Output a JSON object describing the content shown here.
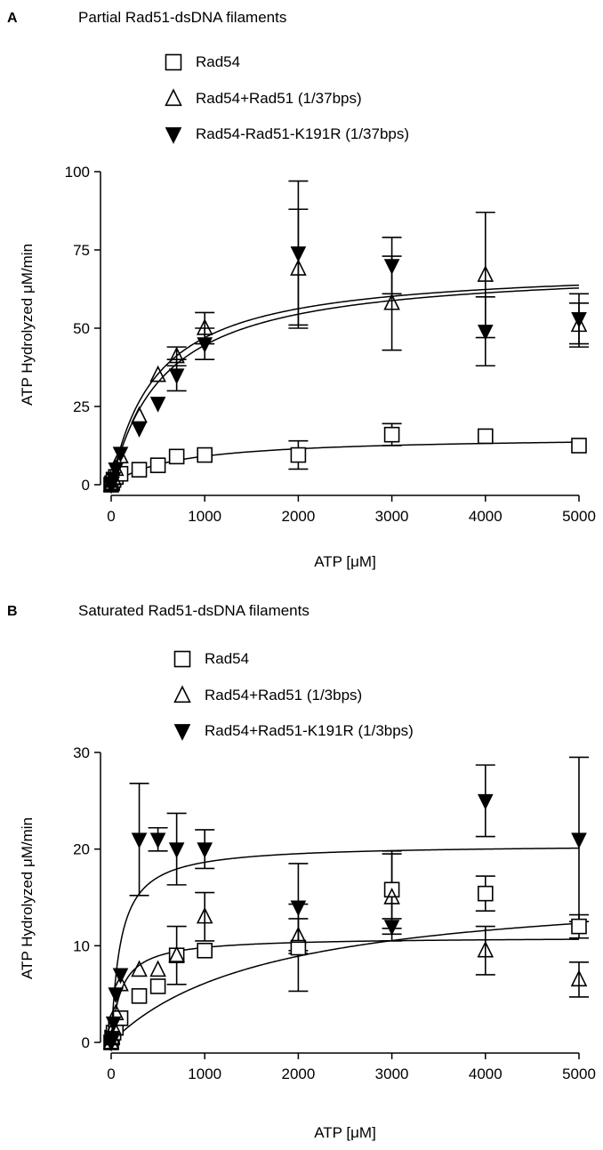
{
  "panels": [
    {
      "letter": "A",
      "title": "Partial Rad51-dsDNA filaments",
      "legend": [
        "Rad54",
        "Rad54+Rad51 (1/37bps)",
        "Rad54-Rad51-K191R (1/37bps)"
      ]
    },
    {
      "letter": "B",
      "title": "Saturated Rad51-dsDNA filaments",
      "legend": [
        "Rad54",
        "Rad54+Rad51 (1/3bps)",
        "Rad54+Rad51-K191R (1/3bps)"
      ]
    }
  ],
  "chart_data": [
    {
      "type": "scatter",
      "title": "Partial Rad51-dsDNA filaments",
      "xlabel": "ATP [μM]",
      "ylabel": "ATP Hydrolyzed μM/min",
      "xlim": [
        0,
        5000
      ],
      "ylim": [
        0,
        100
      ],
      "xticks": [
        0,
        1000,
        2000,
        3000,
        4000,
        5000
      ],
      "yticks": [
        0,
        25,
        50,
        75,
        100
      ],
      "grid": false,
      "legend_position": "top-left",
      "series": [
        {
          "name": "Rad54",
          "marker": "open-square",
          "x": [
            0,
            10,
            25,
            50,
            100,
            300,
            500,
            700,
            1000,
            2000,
            3000,
            4000,
            5000
          ],
          "y": [
            0,
            0.5,
            1.5,
            2.5,
            3.5,
            4.8,
            6.2,
            9,
            9.5,
            9.5,
            16,
            15.5,
            12.5
          ],
          "err": [
            0,
            0,
            0,
            0,
            0,
            0,
            0,
            0,
            0,
            4.5,
            3.5,
            0,
            0
          ],
          "fit": {
            "vmax": 15.5,
            "km": 700
          }
        },
        {
          "name": "Rad54+Rad51 (1/37bps)",
          "marker": "open-triangle-up",
          "x": [
            0,
            10,
            25,
            50,
            100,
            300,
            500,
            700,
            1000,
            2000,
            3000,
            4000,
            5000
          ],
          "y": [
            0,
            0.5,
            2,
            5,
            9,
            22,
            35,
            41,
            50,
            69,
            58,
            67,
            51
          ],
          "err": [
            0,
            0,
            0,
            0,
            0,
            0,
            0,
            3,
            5,
            19,
            15,
            20,
            7
          ],
          "fit": {
            "vmax": 70,
            "km": 490
          }
        },
        {
          "name": "Rad54-Rad51-K191R (1/37bps)",
          "marker": "filled-triangle-down",
          "x": [
            0,
            10,
            25,
            50,
            100,
            300,
            500,
            700,
            1000,
            2000,
            3000,
            4000,
            5000
          ],
          "y": [
            0,
            0.5,
            2,
            5,
            10,
            18,
            26,
            35,
            45,
            74,
            70,
            49,
            53
          ],
          "err": [
            0,
            0,
            0,
            0,
            0,
            0,
            0,
            5,
            5,
            23,
            9,
            11,
            8
          ],
          "fit": {
            "vmax": 70,
            "km": 570
          }
        }
      ]
    },
    {
      "type": "scatter",
      "title": "Saturated Rad51-dsDNA filaments",
      "xlabel": "ATP [μM]",
      "ylabel": "ATP Hydrolyzed μM/min",
      "xlim": [
        0,
        5000
      ],
      "ylim": [
        0,
        30
      ],
      "xticks": [
        0,
        1000,
        2000,
        3000,
        4000,
        5000
      ],
      "yticks": [
        0,
        10,
        20,
        30
      ],
      "grid": false,
      "legend_position": "top-left",
      "series": [
        {
          "name": "Rad54",
          "marker": "open-square",
          "x": [
            0,
            10,
            25,
            50,
            100,
            300,
            500,
            700,
            1000,
            2000,
            3000,
            4000,
            5000
          ],
          "y": [
            0,
            0.5,
            1.0,
            1.5,
            2.5,
            4.8,
            5.8,
            9.0,
            9.5,
            9.8,
            15.8,
            15.4,
            12.0
          ],
          "err": [
            0,
            0,
            0,
            0,
            0,
            0,
            0,
            0,
            0,
            4.5,
            4.0,
            1.8,
            1.2
          ],
          "fit": {
            "vmax": 16.5,
            "km": 1700
          }
        },
        {
          "name": "Rad54+Rad51 (1/3bps)",
          "marker": "open-triangle-up",
          "x": [
            0,
            10,
            25,
            50,
            100,
            300,
            500,
            700,
            1000,
            2000,
            3000,
            4000,
            5000
          ],
          "y": [
            0,
            0.5,
            1.5,
            3,
            6,
            7.5,
            7.5,
            9,
            13,
            11,
            15,
            9.5,
            6.5
          ],
          "err": [
            0,
            0,
            0,
            0,
            0,
            0,
            0,
            3,
            2.5,
            1.8,
            4.5,
            2.5,
            1.8
          ],
          "fit": {
            "vmax": 10.9,
            "km": 110
          }
        },
        {
          "name": "Rad54+Rad51-K191R (1/3bps)",
          "marker": "filled-triangle-down",
          "x": [
            0,
            10,
            25,
            50,
            100,
            300,
            500,
            700,
            1000,
            2000,
            3000,
            4000,
            5000
          ],
          "y": [
            0,
            0.5,
            2,
            5,
            7,
            21,
            21,
            20,
            20,
            14,
            12,
            25,
            21
          ],
          "err": [
            0,
            0,
            0,
            0,
            0,
            5.8,
            1.2,
            3.7,
            2.0,
            4.5,
            0.8,
            3.7,
            8.5
          ],
          "fit": {
            "vmax": 20.5,
            "km": 100
          }
        }
      ]
    }
  ]
}
